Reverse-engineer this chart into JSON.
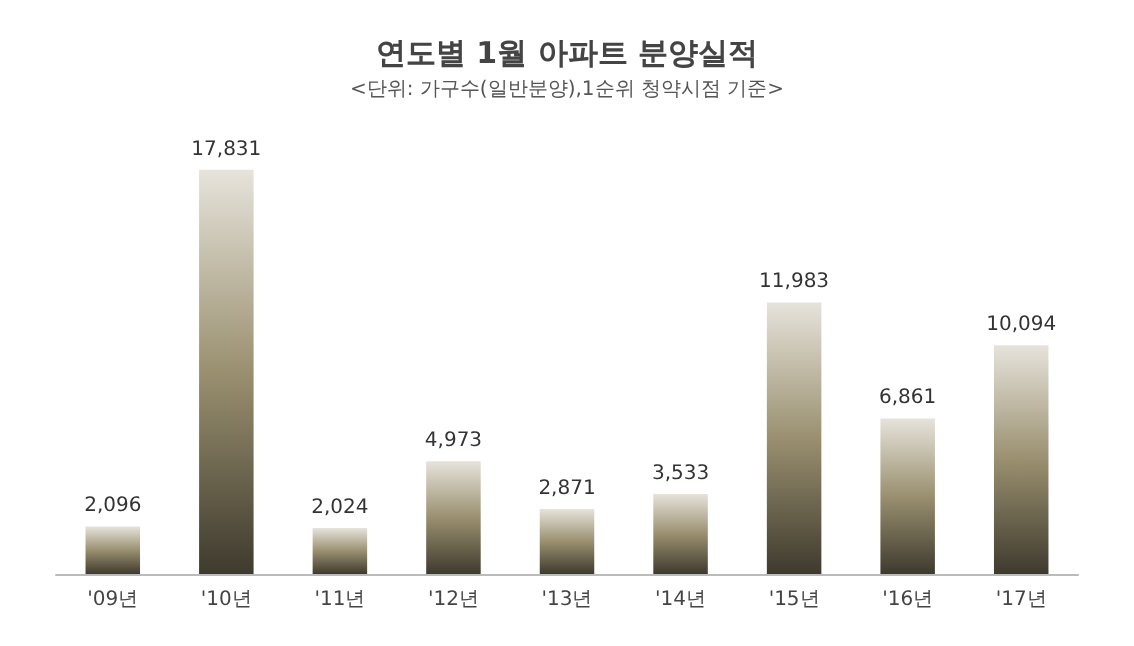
{
  "chart_data": {
    "type": "bar",
    "title": "연도별 1월 아파트 분양실적",
    "subtitle": "<단위: 가구수(일반분양),1순위 청약시점 기준>",
    "categories": [
      "'09년",
      "'10년",
      "'11년",
      "'12년",
      "'13년",
      "'14년",
      "'15년",
      "'16년",
      "'17년"
    ],
    "values": [
      2096,
      17831,
      2024,
      4973,
      2871,
      3533,
      11983,
      6861,
      10094
    ],
    "value_labels": [
      "2,096",
      "17,831",
      "2,024",
      "4,973",
      "2,871",
      "3,533",
      "11,983",
      "6,861",
      "10,094"
    ],
    "color": "#9a9070"
  }
}
